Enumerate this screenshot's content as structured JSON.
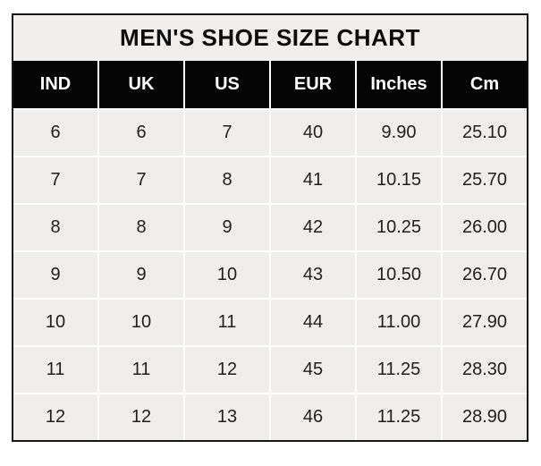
{
  "chart_data": {
    "type": "table",
    "title": "MEN'S SHOE SIZE CHART",
    "columns": [
      "IND",
      "UK",
      "US",
      "EUR",
      "Inches",
      "Cm"
    ],
    "rows": [
      [
        "6",
        "6",
        "7",
        "40",
        "9.90",
        "25.10"
      ],
      [
        "7",
        "7",
        "8",
        "41",
        "10.15",
        "25.70"
      ],
      [
        "8",
        "8",
        "9",
        "42",
        "10.25",
        "26.00"
      ],
      [
        "9",
        "9",
        "10",
        "43",
        "10.50",
        "26.70"
      ],
      [
        "10",
        "10",
        "11",
        "44",
        "11.00",
        "27.90"
      ],
      [
        "11",
        "11",
        "12",
        "45",
        "11.25",
        "28.30"
      ],
      [
        "12",
        "12",
        "13",
        "46",
        "11.25",
        "28.90"
      ]
    ],
    "layout": {
      "grid": "on",
      "legend": "none"
    }
  },
  "colors": {
    "page_background": "#ffffff",
    "frame_border": "#161514",
    "title_background": "#f0efed",
    "header_background": "#050505",
    "header_text": "#ffffff",
    "cell_background": "#efeeec",
    "cell_text": "#1f1f1f",
    "gridline": "#ffffff"
  }
}
